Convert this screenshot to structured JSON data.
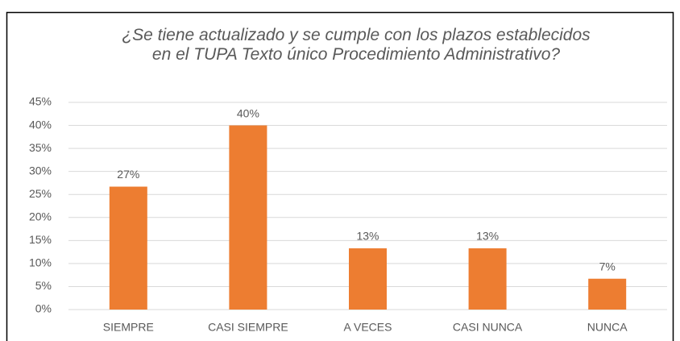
{
  "chart_data": {
    "type": "bar",
    "title": "¿Se tiene actualizado y se cumple con los plazos establecidos en el TUPA Texto único Procedimiento Administrativo?",
    "categories": [
      "SIEMPRE",
      "CASI SIEMPRE",
      "A VECES",
      "CASI NUNCA",
      "NUNCA"
    ],
    "values": [
      26.7,
      40,
      13.3,
      13.3,
      6.7
    ],
    "value_labels": [
      "27%",
      "40%",
      "13%",
      "13%",
      "7%"
    ],
    "color": "#ed7d31",
    "ylim": [
      0,
      45
    ],
    "yticks": [
      {
        "value": 0,
        "label": "0%"
      },
      {
        "value": 5,
        "label": "5%"
      },
      {
        "value": 10,
        "label": "10%"
      },
      {
        "value": 15,
        "label": "15%"
      },
      {
        "value": 20,
        "label": "20%"
      },
      {
        "value": 25,
        "label": "25%"
      },
      {
        "value": 30,
        "label": "30%"
      },
      {
        "value": 35,
        "label": "35%"
      },
      {
        "value": 40,
        "label": "40%"
      },
      {
        "value": 45,
        "label": "45%"
      }
    ],
    "grid": true
  }
}
